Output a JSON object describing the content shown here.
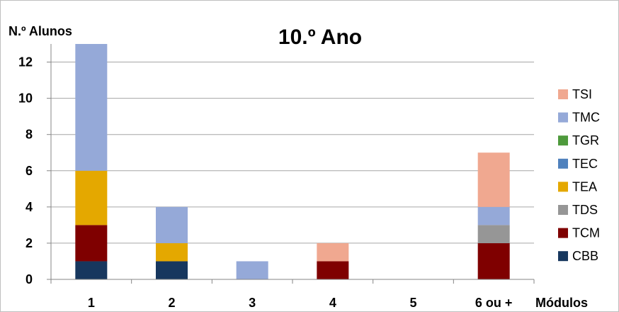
{
  "chart_data": {
    "type": "bar",
    "stacked": true,
    "title": "10.º Ano",
    "xlabel": "Módulos",
    "ylabel": "N.º Alunos",
    "categories": [
      "1",
      "2",
      "3",
      "4",
      "5",
      "6 ou +"
    ],
    "ylim": [
      0,
      13
    ],
    "yticks": [
      0,
      2,
      4,
      6,
      8,
      10,
      12
    ],
    "grid": true,
    "legend_position": "right",
    "series": [
      {
        "name": "CBB",
        "color": "#17375E",
        "values": [
          1,
          1,
          0,
          0,
          0,
          0
        ]
      },
      {
        "name": "TCM",
        "color": "#7F0000",
        "values": [
          2,
          0,
          0,
          1,
          0,
          2
        ]
      },
      {
        "name": "TDS",
        "color": "#969696",
        "values": [
          0,
          0,
          0,
          0,
          0,
          1
        ]
      },
      {
        "name": "TEA",
        "color": "#E4A800",
        "values": [
          3,
          1,
          0,
          0,
          0,
          0
        ]
      },
      {
        "name": "TEC",
        "color": "#4F81BD",
        "values": [
          0,
          0,
          0,
          0,
          0,
          0
        ]
      },
      {
        "name": "TGR",
        "color": "#4E9A3C",
        "values": [
          0,
          0,
          0,
          0,
          0,
          0
        ]
      },
      {
        "name": "TMC",
        "color": "#95A9D8",
        "values": [
          7,
          2,
          1,
          0,
          0,
          1
        ]
      },
      {
        "name": "TSI",
        "color": "#F0A890",
        "values": [
          0,
          0,
          0,
          1,
          0,
          3
        ]
      }
    ]
  }
}
